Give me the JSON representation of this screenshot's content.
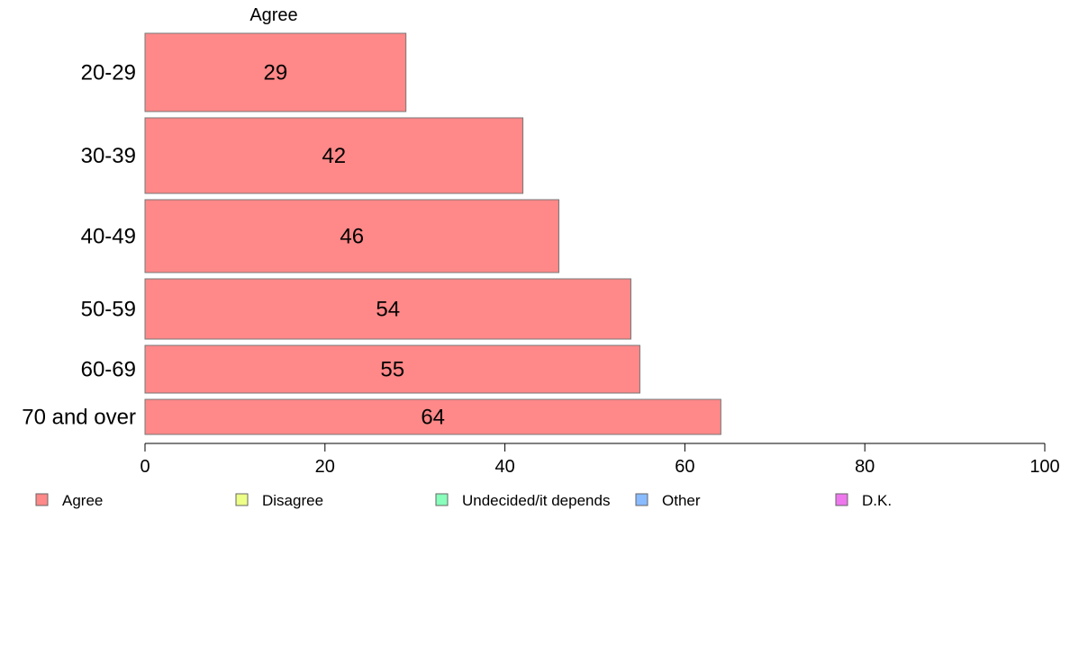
{
  "chart_data": {
    "type": "bar",
    "orientation": "horizontal",
    "series_title": "Agree",
    "categories": [
      "20-29",
      "30-39",
      "40-49",
      "50-59",
      "60-69",
      "70 and over"
    ],
    "series": [
      {
        "name": "Agree",
        "values": [
          29,
          42,
          46,
          54,
          55,
          64
        ],
        "color": "#ff8888"
      }
    ],
    "xlim": [
      0,
      100
    ],
    "xticks": [
      0,
      20,
      40,
      60,
      80,
      100
    ],
    "grid": false,
    "legend_position": "bottom",
    "legend": [
      {
        "label": "Agree",
        "color": "#ff8888"
      },
      {
        "label": "Disagree",
        "color": "#eeff88"
      },
      {
        "label": "Undecided/it depends",
        "color": "#88ffbb"
      },
      {
        "label": "Other",
        "color": "#88bbff"
      },
      {
        "label": "D.K.",
        "color": "#ee77ee"
      }
    ]
  }
}
